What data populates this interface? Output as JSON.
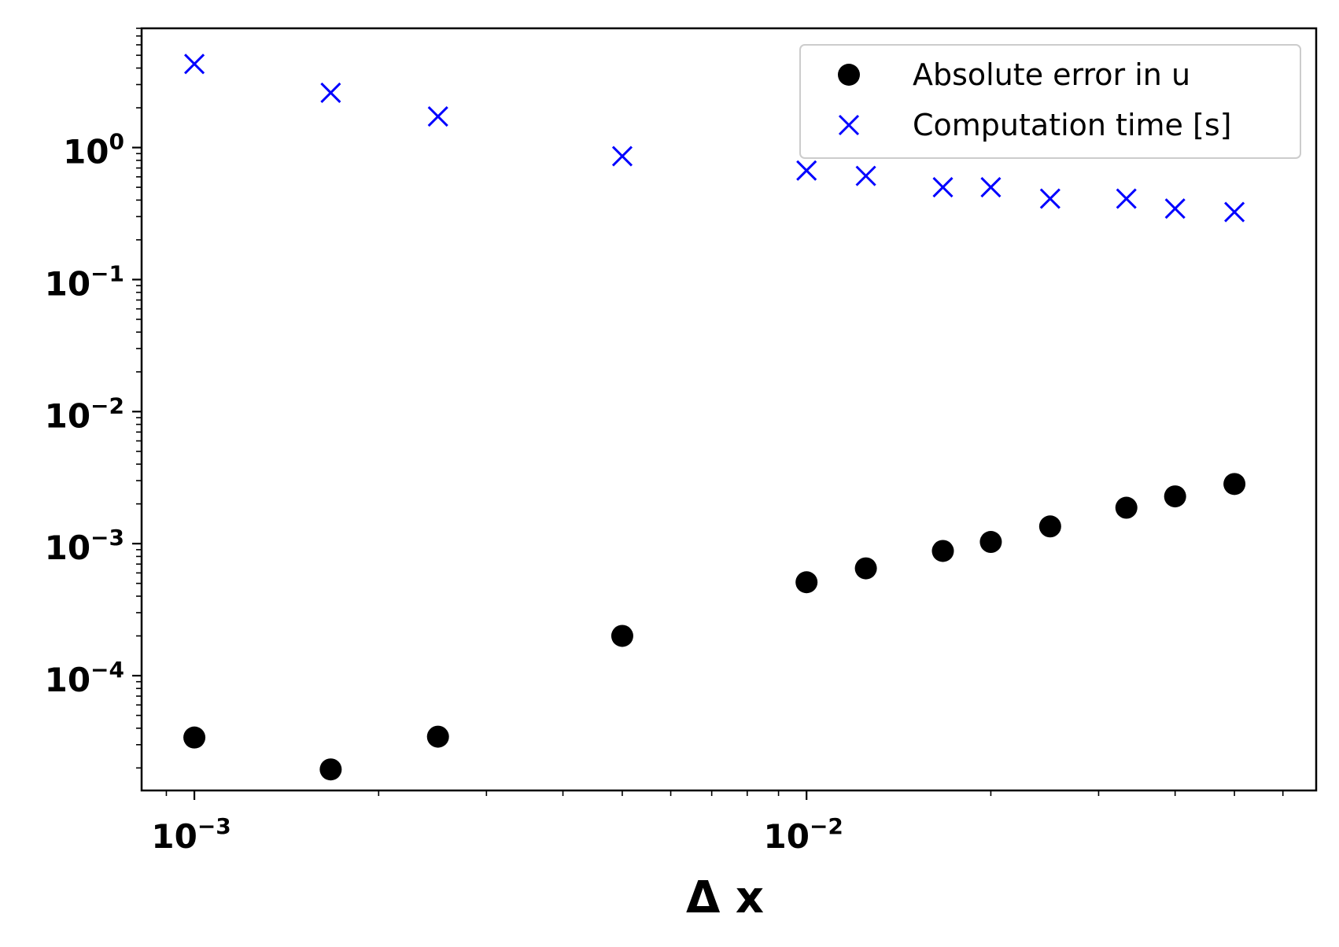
{
  "chart_data": {
    "type": "scatter",
    "title": "",
    "xlabel": "Δ x",
    "ylabel": "",
    "xscale": "log",
    "yscale": "log",
    "xlim": [
      0.00082,
      0.068
    ],
    "ylim": [
      1.35e-05,
      8.0
    ],
    "legend_position": "top-right",
    "grid": false,
    "x_tick_labels": [
      {
        "value": 0.001,
        "base": "10",
        "exp": "−3"
      },
      {
        "value": 0.01,
        "base": "10",
        "exp": "−2"
      }
    ],
    "y_tick_labels": [
      {
        "value": 1,
        "base": "10",
        "exp": "0"
      },
      {
        "value": 0.1,
        "base": "10",
        "exp": "−1"
      },
      {
        "value": 0.01,
        "base": "10",
        "exp": "−2"
      },
      {
        "value": 0.001,
        "base": "10",
        "exp": "−3"
      },
      {
        "value": 0.0001,
        "base": "10",
        "exp": "−4"
      }
    ],
    "series": [
      {
        "name": "Absolute error in u",
        "marker": "circle",
        "color": "#000000",
        "points": [
          {
            "x": 0.001,
            "y": 3.4e-05
          },
          {
            "x": 0.00167,
            "y": 1.95e-05
          },
          {
            "x": 0.0025,
            "y": 3.45e-05
          },
          {
            "x": 0.005,
            "y": 0.0002
          },
          {
            "x": 0.01,
            "y": 0.00051
          },
          {
            "x": 0.0125,
            "y": 0.00065
          },
          {
            "x": 0.0167,
            "y": 0.00088
          },
          {
            "x": 0.02,
            "y": 0.00103
          },
          {
            "x": 0.025,
            "y": 0.00135
          },
          {
            "x": 0.0333,
            "y": 0.00187
          },
          {
            "x": 0.04,
            "y": 0.00228
          },
          {
            "x": 0.05,
            "y": 0.00283
          }
        ]
      },
      {
        "name": "Computation time [s]",
        "marker": "x",
        "color": "#0000ff",
        "points": [
          {
            "x": 0.001,
            "y": 4.3
          },
          {
            "x": 0.00167,
            "y": 2.6
          },
          {
            "x": 0.0025,
            "y": 1.72
          },
          {
            "x": 0.005,
            "y": 0.86
          },
          {
            "x": 0.01,
            "y": 0.67
          },
          {
            "x": 0.0125,
            "y": 0.61
          },
          {
            "x": 0.0167,
            "y": 0.5
          },
          {
            "x": 0.02,
            "y": 0.5
          },
          {
            "x": 0.025,
            "y": 0.41
          },
          {
            "x": 0.0333,
            "y": 0.41
          },
          {
            "x": 0.04,
            "y": 0.345
          },
          {
            "x": 0.05,
            "y": 0.325
          }
        ]
      }
    ]
  }
}
